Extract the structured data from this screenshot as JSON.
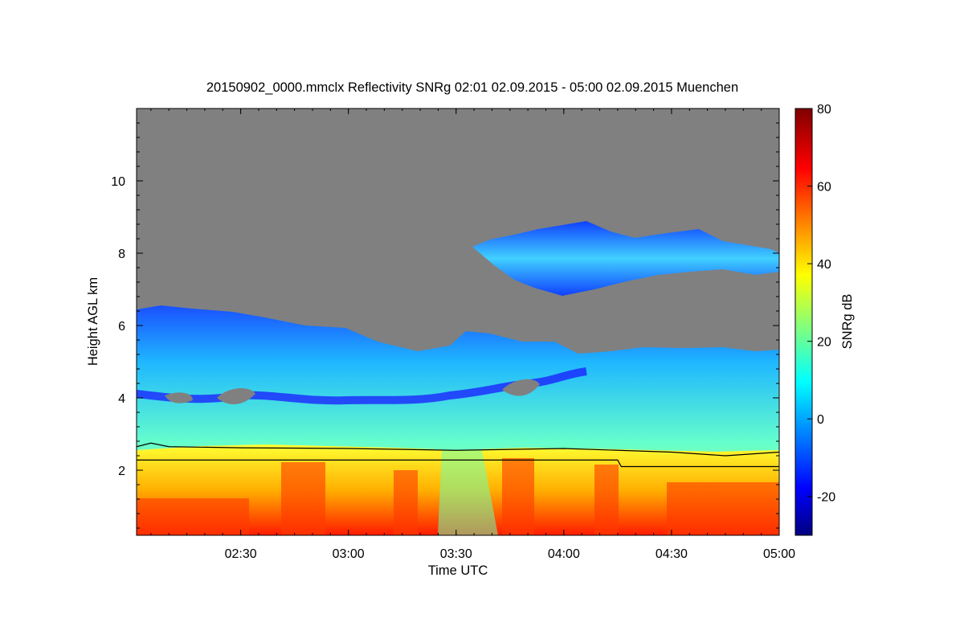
{
  "chart_data": {
    "type": "heatmap",
    "title": "20150902_0000.mmclx Reflectivity SNRg   02:01 02.09.2015 - 05:00 02.09.2015 Muenchen",
    "xlabel": "Time UTC",
    "ylabel": "Height AGL km",
    "xlim": [
      "02:01",
      "05:00"
    ],
    "ylim": [
      0.2,
      12
    ],
    "x_ticks": [
      "02:30",
      "03:00",
      "03:30",
      "04:00",
      "04:30",
      "05:00"
    ],
    "y_ticks": [
      2,
      4,
      6,
      8,
      10
    ],
    "colorbar": {
      "label": "SNRg dB",
      "range": [
        -30,
        80
      ],
      "ticks": [
        -20,
        0,
        20,
        40,
        60,
        80
      ],
      "colormap": "jet"
    },
    "no_signal_color": "#808080",
    "layers": {
      "lower_boundary_line_km": [
        {
          "time": "02:01",
          "height": 2.65
        },
        {
          "time": "02:05",
          "height": 2.75
        },
        {
          "time": "02:10",
          "height": 2.65
        },
        {
          "time": "02:30",
          "height": 2.62
        },
        {
          "time": "03:00",
          "height": 2.6
        },
        {
          "time": "03:30",
          "height": 2.55
        },
        {
          "time": "04:00",
          "height": 2.6
        },
        {
          "time": "04:30",
          "height": 2.5
        },
        {
          "time": "04:45",
          "height": 2.4
        },
        {
          "time": "05:00",
          "height": 2.5
        }
      ],
      "second_line_km": [
        {
          "time": "02:01",
          "height": 2.28
        },
        {
          "time": "04:15",
          "height": 2.28
        },
        {
          "time": "04:16",
          "height": 2.1
        },
        {
          "time": "05:00",
          "height": 2.1
        }
      ]
    }
  }
}
